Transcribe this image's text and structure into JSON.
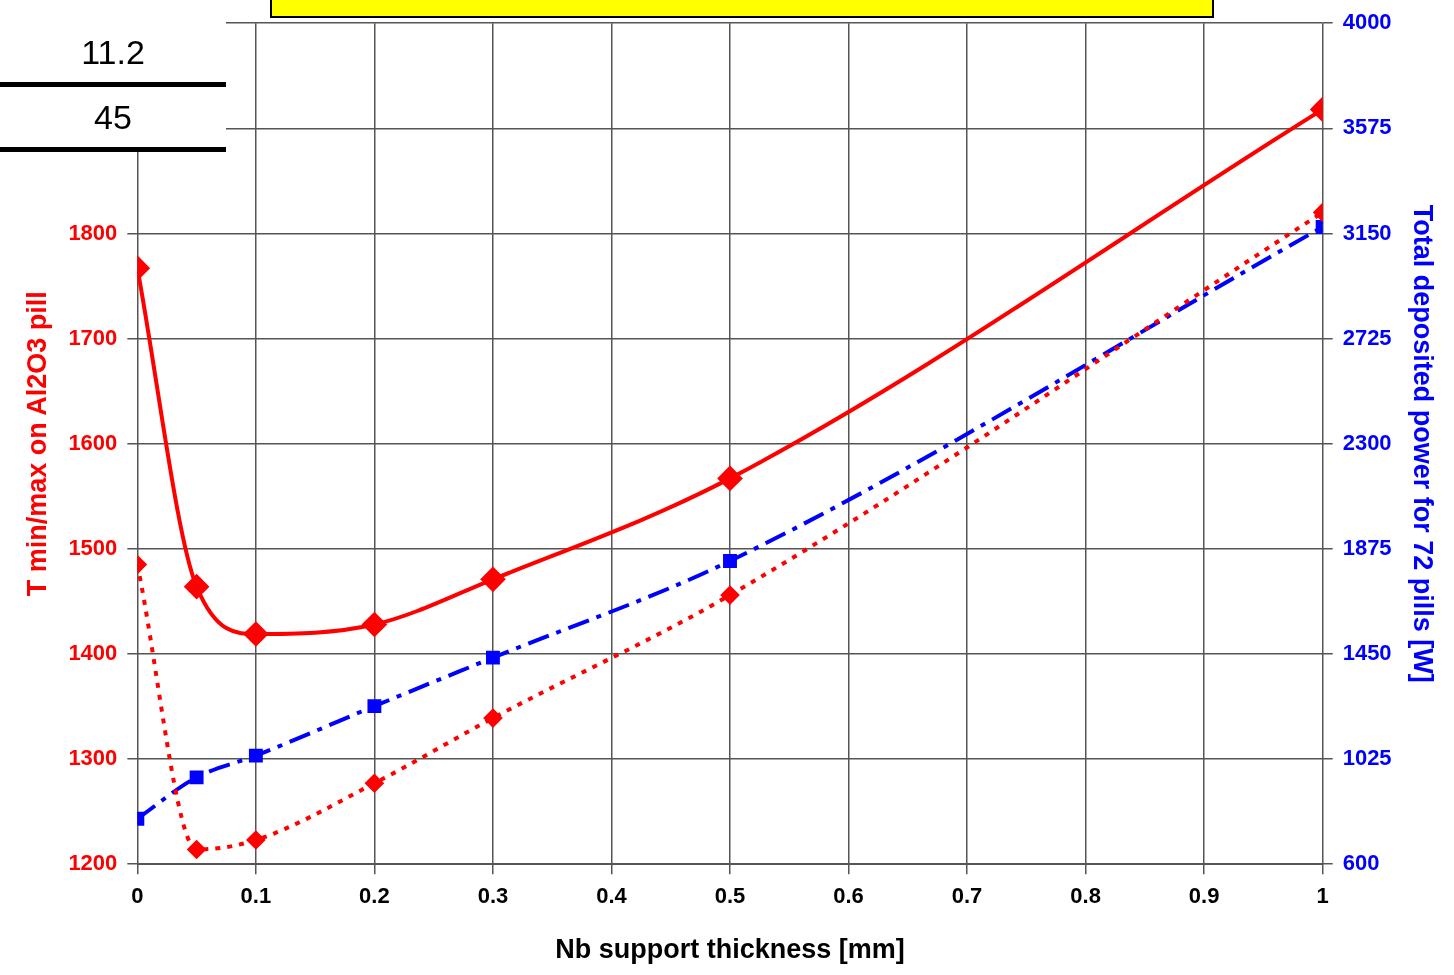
{
  "chart_data": {
    "type": "line",
    "xlabel": "Nb support thickness [mm]",
    "ylabel": "T min/max on Al2O3 pill",
    "y2label": "Total deposited power for 72 pills [W]",
    "x": [
      0,
      0.05,
      0.1,
      0.2,
      0.3,
      0.5,
      1
    ],
    "series": [
      {
        "color": "#ff0000",
        "values": [
          1767,
          1464,
          1419,
          1428,
          1471,
          1567,
          1918
        ],
        "line_style": "solid",
        "marker": "diamond"
      },
      {
        "color": "#ff0000",
        "values": [
          1485,
          1214,
          1223,
          1277,
          1339,
          1456,
          1820
        ],
        "line_style": "dotted",
        "marker": "diamond"
      },
      {
        "color": "#0000ff",
        "values": [
          784,
          951,
          1039,
          1239,
          1435,
          1826,
          3176
        ],
        "line_style": "dashed",
        "marker": "square",
        "axis": "y2"
      }
    ],
    "xlim": [
      0,
      1
    ],
    "xticks": [
      0,
      0.1,
      0.2,
      0.3,
      0.4,
      0.5,
      0.6,
      0.7,
      0.8,
      0.9,
      1
    ],
    "ylim": [
      1200,
      2000
    ],
    "yticks": [
      1200,
      1300,
      1400,
      1500,
      1600,
      1700,
      1800,
      {
        "value": 1900,
        "label": null
      },
      {
        "value": 2000,
        "label": null
      }
    ],
    "y2lim": [
      600,
      4000
    ],
    "y2ticks": [
      600,
      1025,
      1450,
      1875,
      2300,
      2725,
      3150,
      3575,
      4000
    ],
    "grid": true,
    "legend": false,
    "annotations": [
      "11.2",
      "45"
    ]
  }
}
